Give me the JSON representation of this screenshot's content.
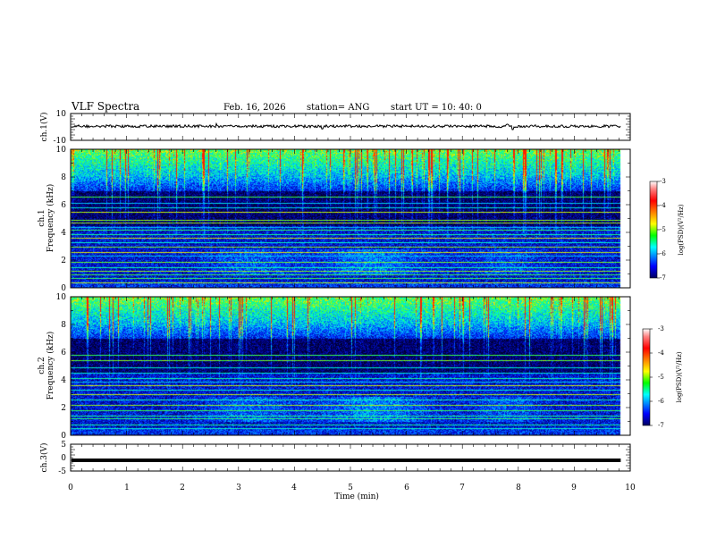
{
  "header": {
    "title": "VLF Spectra",
    "date": "Feb. 16, 2026",
    "station": "station= ANG",
    "start": "start  UT  =   10: 40: 0"
  },
  "x_axis": {
    "label": "Time  (min)",
    "ticks": [
      "0",
      "1",
      "2",
      "3",
      "4",
      "5",
      "6",
      "7",
      "8",
      "9",
      "10"
    ]
  },
  "colors": {
    "trace": "#000000",
    "spectrogram_floor": "#000020"
  },
  "chart_data": [
    {
      "type": "line",
      "name": "ch.1 waveform",
      "ylabel": "ch.1(V)",
      "ylim": [
        -10,
        10
      ],
      "y_ticks": [
        "10",
        "-10"
      ],
      "xlim": [
        0,
        10
      ],
      "data_end_min": 9.83,
      "level": 0.5,
      "noise_amplitude": 1.0,
      "spikes": [
        {
          "t": 2.6,
          "v": 2.5
        },
        {
          "t": 7.8,
          "v": 2.0
        },
        {
          "t": 4.5,
          "v": -1.5
        },
        {
          "t": 7.9,
          "v": -2.0
        }
      ]
    },
    {
      "type": "heatmap",
      "name": "ch.1 spectrogram",
      "ylabel_1": "ch.1",
      "ylabel_2": "Frequency  (kHz)",
      "ylim": [
        0,
        10
      ],
      "y_ticks": [
        "0",
        "2",
        "4",
        "6",
        "8",
        "10"
      ],
      "xlim": [
        0,
        10
      ],
      "data_end_min": 9.83,
      "line_frequencies_khz": [
        0.4,
        0.7,
        1.0,
        1.2,
        1.5,
        1.9,
        2.3,
        2.6,
        3.0,
        3.3,
        3.6,
        3.9,
        4.2,
        4.4,
        4.7,
        4.9,
        5.5,
        5.8,
        6.1,
        6.6
      ],
      "colorbar": {
        "label": "log(PSD)(V²/Hz)",
        "range": [
          -7,
          -3
        ],
        "ticks": [
          "-3",
          "-4",
          "-5",
          "-6",
          "-7"
        ]
      }
    },
    {
      "type": "heatmap",
      "name": "ch.2 spectrogram",
      "ylabel_1": "ch.2",
      "ylabel_2": "Frequency  (kHz)",
      "ylim": [
        0,
        10
      ],
      "y_ticks": [
        "0",
        "2",
        "4",
        "6",
        "8",
        "10"
      ],
      "xlim": [
        0,
        10
      ],
      "data_end_min": 9.83,
      "line_frequencies_khz": [
        0.5,
        0.8,
        1.2,
        1.4,
        1.8,
        2.2,
        2.6,
        3.0,
        3.3,
        3.6,
        3.9,
        4.1,
        4.5,
        4.9,
        5.4,
        5.8
      ],
      "colorbar": {
        "label": "log(PSD)(V²/Hz)",
        "range": [
          -7,
          -3
        ],
        "ticks": [
          "-3",
          "-4",
          "-5",
          "-6",
          "-7"
        ]
      }
    },
    {
      "type": "line",
      "name": "ch.3 signal",
      "ylabel": "ch.3(V)",
      "ylim": [
        -5,
        5
      ],
      "y_ticks": [
        "5",
        "0",
        "-5"
      ],
      "xlim": [
        0,
        10
      ],
      "data_end_min": 9.83,
      "level": -1.0
    }
  ]
}
